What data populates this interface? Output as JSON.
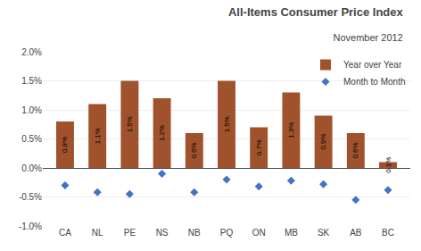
{
  "chart_data": {
    "type": "bar",
    "title": "All-Items Consumer Price Index",
    "subtitle": "November 2012",
    "categories": [
      "CA",
      "NL",
      "PE",
      "NS",
      "NB",
      "PQ",
      "ON",
      "MB",
      "SK",
      "AB",
      "BC"
    ],
    "series": [
      {
        "name": "Year over Year",
        "type": "bar",
        "color": "#A0522D",
        "values": [
          0.8,
          1.1,
          1.5,
          1.2,
          0.6,
          1.5,
          0.7,
          1.3,
          0.9,
          0.6,
          0.1
        ],
        "data_labels": true,
        "value_labels": [
          "0.8%",
          "1.1%",
          "1.5%",
          "1.2%",
          "0.6%",
          "1.5%",
          "0.7%",
          "1.3%",
          "0.9%",
          "0.6%",
          "0.1%"
        ]
      },
      {
        "name": "Month to Month",
        "type": "scatter",
        "marker": "diamond",
        "color": "#4472C4",
        "values": [
          -0.3,
          -0.42,
          -0.45,
          -0.1,
          -0.42,
          -0.2,
          -0.32,
          -0.22,
          -0.28,
          -0.55,
          -0.38
        ]
      }
    ],
    "ylim": [
      -1.0,
      2.0
    ],
    "yticks": [
      {
        "value": -1.0,
        "label": "-1.0%"
      },
      {
        "value": -0.5,
        "label": "-0.5%"
      },
      {
        "value": 0.0,
        "label": "0.0%"
      },
      {
        "value": 0.5,
        "label": "0.5%"
      },
      {
        "value": 1.0,
        "label": "1.0%"
      },
      {
        "value": 1.5,
        "label": "1.5%"
      },
      {
        "value": 2.0,
        "label": "2.0%"
      }
    ],
    "grid": true,
    "legend": "upper right"
  }
}
